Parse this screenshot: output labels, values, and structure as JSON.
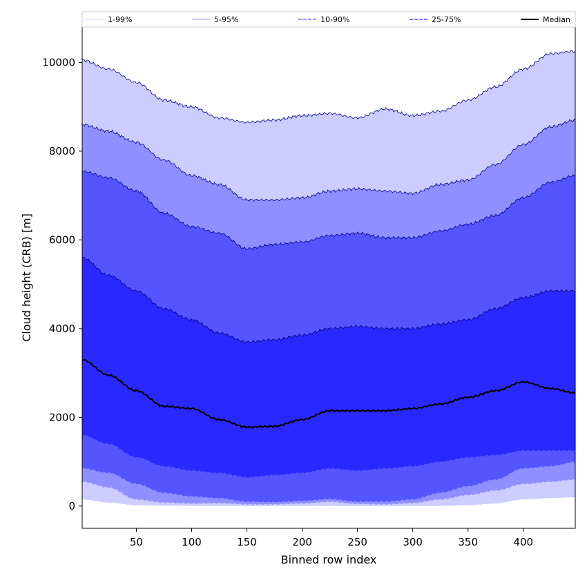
{
  "chart_data": {
    "type": "area",
    "xlabel": "Binned row index",
    "ylabel": "Cloud height (CRB) [m]",
    "xlim": [
      1,
      447
    ],
    "ylim": [
      -500,
      10800
    ],
    "x_ticks": [
      50,
      100,
      150,
      200,
      250,
      300,
      350,
      400
    ],
    "y_ticks": [
      0,
      2000,
      4000,
      6000,
      8000,
      10000
    ],
    "grid": false,
    "legend_placement": "top (above plot)",
    "colors": {
      "band_1_99": "#ccccff",
      "band_5_95": "#8f8fff",
      "band_10_90": "#5555ff",
      "band_25_75": "#2929ff",
      "median": "#000000",
      "envelope_line": "#00008b"
    },
    "legend": [
      {
        "label": "1-99%",
        "style": "thin-solid",
        "color": "#ccccff"
      },
      {
        "label": "5-95%",
        "style": "thin-solid",
        "color": "#8f8fff"
      },
      {
        "label": "10-90%",
        "style": "dashed",
        "color": "#5555ff"
      },
      {
        "label": "25-75%",
        "style": "dashed",
        "color": "#2929ff"
      },
      {
        "label": "Median",
        "style": "thick-solid",
        "color": "#000000"
      }
    ],
    "x": [
      1,
      25,
      50,
      75,
      100,
      125,
      150,
      175,
      200,
      225,
      250,
      275,
      300,
      325,
      350,
      375,
      400,
      425,
      447
    ],
    "series": [
      {
        "name": "1-99%",
        "type": "band",
        "low": [
          150,
          80,
          20,
          10,
          5,
          5,
          0,
          0,
          5,
          5,
          0,
          0,
          5,
          5,
          20,
          60,
          150,
          180,
          200
        ],
        "high": [
          10050,
          9850,
          9550,
          9150,
          9000,
          8750,
          8650,
          8700,
          8800,
          8850,
          8750,
          8950,
          8800,
          8900,
          9150,
          9450,
          9850,
          10200,
          10250
        ]
      },
      {
        "name": "5-95%",
        "type": "band",
        "low": [
          550,
          420,
          150,
          80,
          60,
          70,
          40,
          40,
          60,
          100,
          50,
          40,
          70,
          150,
          250,
          350,
          500,
          550,
          600
        ],
        "high": [
          8600,
          8450,
          8200,
          7800,
          7450,
          7250,
          6900,
          6900,
          6950,
          7100,
          7150,
          7100,
          7050,
          7250,
          7350,
          7700,
          8150,
          8550,
          8700
        ]
      },
      {
        "name": "10-90%",
        "type": "band",
        "low": [
          850,
          750,
          500,
          300,
          220,
          180,
          100,
          90,
          120,
          160,
          100,
          100,
          150,
          300,
          450,
          600,
          850,
          900,
          1000
        ],
        "high": [
          7550,
          7400,
          7100,
          6600,
          6300,
          6150,
          5800,
          5900,
          5950,
          6100,
          6150,
          6050,
          6050,
          6200,
          6350,
          6550,
          6950,
          7300,
          7450
        ]
      },
      {
        "name": "25-75%",
        "type": "band",
        "low": [
          1600,
          1400,
          1100,
          900,
          800,
          750,
          650,
          700,
          750,
          850,
          800,
          850,
          900,
          1000,
          1100,
          1150,
          1250,
          1250,
          1250
        ],
        "high": [
          5600,
          5200,
          4850,
          4450,
          4200,
          3900,
          3700,
          3750,
          3850,
          4000,
          4050,
          4000,
          4000,
          4100,
          4200,
          4450,
          4700,
          4850,
          4850
        ]
      },
      {
        "name": "Median",
        "type": "line",
        "values": [
          3300,
          2950,
          2600,
          2250,
          2200,
          1950,
          1780,
          1800,
          1950,
          2150,
          2150,
          2150,
          2200,
          2300,
          2450,
          2600,
          2800,
          2650,
          2550
        ]
      }
    ]
  }
}
